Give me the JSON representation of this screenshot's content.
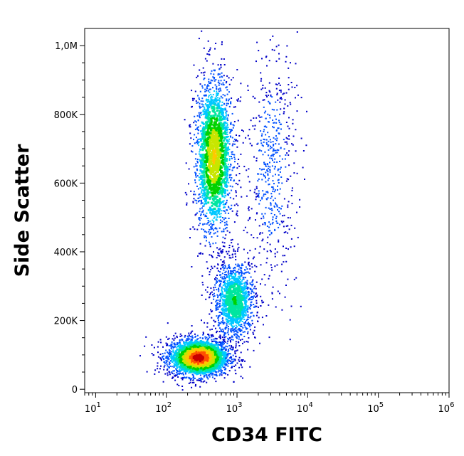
{
  "chart_data": {
    "type": "scatter",
    "subtype": "flow-cytometry-density-dot-plot",
    "title": "",
    "xlabel": "CD34 FITC",
    "ylabel": "Side Scatter",
    "x_scale": "log",
    "y_scale": "linear",
    "xlim": [
      7,
      1000000
    ],
    "ylim": [
      -10000,
      1050000
    ],
    "grid": false,
    "legend": "none",
    "x_ticks": [
      {
        "value": 10,
        "base": "10",
        "exp": "1"
      },
      {
        "value": 100,
        "base": "10",
        "exp": "2"
      },
      {
        "value": 1000,
        "base": "10",
        "exp": "3"
      },
      {
        "value": 10000,
        "base": "10",
        "exp": "4"
      },
      {
        "value": 100000,
        "base": "10",
        "exp": "5"
      },
      {
        "value": 1000000,
        "base": "10",
        "exp": "6"
      }
    ],
    "y_ticks": [
      {
        "value": 0,
        "label": "0"
      },
      {
        "value": 200000,
        "label": "200K"
      },
      {
        "value": 400000,
        "label": "400K"
      },
      {
        "value": 600000,
        "label": "600K"
      },
      {
        "value": 800000,
        "label": "800K"
      },
      {
        "value": 1000000,
        "label": "1,0M"
      }
    ],
    "density_colormap": [
      "#0000c8",
      "#0050ff",
      "#00c8ff",
      "#00e6a0",
      "#00d200",
      "#c8e600",
      "#ffc800",
      "#ff5000",
      "#c80000"
    ],
    "populations": [
      {
        "name": "",
        "x_center": 280,
        "y_center": 95000,
        "x_spread_decades": 0.22,
        "y_spread": 28000,
        "density": 1.0
      },
      {
        "name": "",
        "x_center": 460,
        "y_center": 680000,
        "x_spread_decades": 0.14,
        "y_spread": 120000,
        "density": 0.7
      },
      {
        "name": "",
        "x_center": 900,
        "y_center": 260000,
        "x_spread_decades": 0.15,
        "y_spread": 60000,
        "density": 0.45
      },
      {
        "name": "",
        "x_center": 3000,
        "y_center": 650000,
        "x_spread_decades": 0.18,
        "y_spread": 180000,
        "density": 0.12
      }
    ]
  }
}
